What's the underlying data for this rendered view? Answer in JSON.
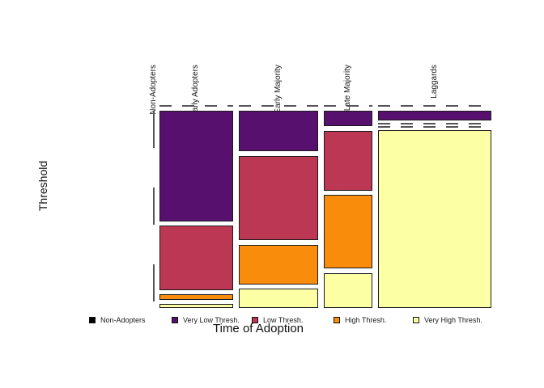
{
  "figure": {
    "x_axis_label": "Time of Adoption",
    "y_axis_label": "Threshold"
  },
  "legend": {
    "items": [
      {
        "label": "Non-Adopters",
        "color": "#000004"
      },
      {
        "label": "Very Low Thresh.",
        "color": "#57106E"
      },
      {
        "label": "Low Thresh.",
        "color": "#BC3754"
      },
      {
        "label": "High Thresh.",
        "color": "#F98C0A"
      },
      {
        "label": "Very High Thresh.",
        "color": "#FCFFA4"
      }
    ]
  },
  "chart_data": {
    "type": "mosaic",
    "x_variable": "Time of Adoption",
    "y_variable": "Threshold",
    "x_categories": [
      "Non-Adopters",
      "Early Adopters",
      "Early Majority",
      "Late Majority",
      "Laggards"
    ],
    "y_categories": [
      "Non-Adopters",
      "Very Low Thresh.",
      "Low Thresh.",
      "High Thresh.",
      "Very High Thresh."
    ],
    "legend_position": "bottom",
    "notes": "Zero-proportion cells are drawn as dashed line segments; column width is proportional to column weight, cell height to within-column proportion.",
    "columns": [
      {
        "label": "Non-Adopters",
        "weight": 0.0,
        "rows": [
          0,
          0,
          0,
          0,
          0
        ]
      },
      {
        "label": "Early Adopters",
        "weight": 0.233,
        "rows": [
          0,
          0.6,
          0.35,
          0.03,
          0.02
        ]
      },
      {
        "label": "Early Majority",
        "weight": 0.253,
        "rows": [
          0,
          0.22,
          0.46,
          0.215,
          0.105
        ]
      },
      {
        "label": "Late Majority",
        "weight": 0.155,
        "rows": [
          0,
          0.085,
          0.325,
          0.4,
          0.19
        ]
      },
      {
        "label": "Laggards",
        "weight": 0.359,
        "rows": [
          0,
          0.05,
          0,
          0,
          0.95
        ]
      }
    ]
  }
}
